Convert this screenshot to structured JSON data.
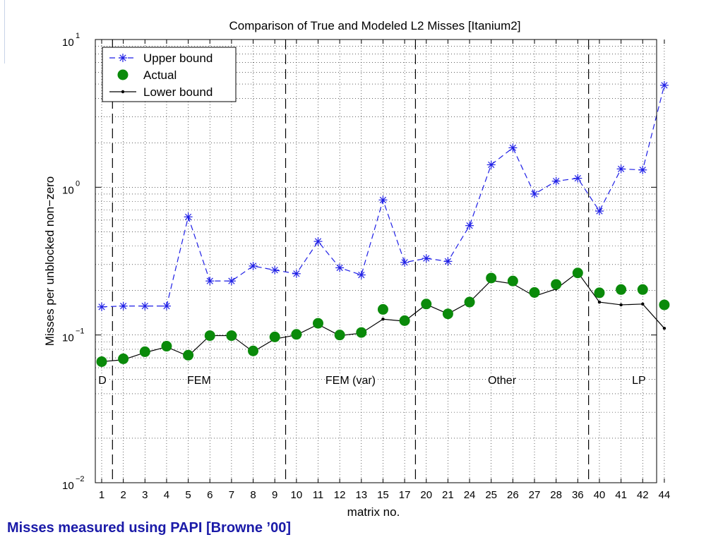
{
  "slide": {
    "caption": "Misses measured using PAPI [Browne ’00]"
  },
  "chart_data": {
    "type": "line",
    "title": "Comparison of True and Modeled L2 Misses [Itanium2]",
    "xlabel": "matrix no.",
    "ylabel": "Misses per unblocked non−zero",
    "y_scale": "log",
    "ylim": [
      0.01,
      10
    ],
    "y_ticks": [
      {
        "base": "10",
        "exp": "−2",
        "value": 0.01
      },
      {
        "base": "10",
        "exp": "−1",
        "value": 0.1
      },
      {
        "base": "10",
        "exp": "0",
        "value": 1
      },
      {
        "base": "10",
        "exp": "1",
        "value": 10
      }
    ],
    "grid": true,
    "legend_position": "top-left",
    "categories": [
      "1",
      "2",
      "3",
      "4",
      "5",
      "6",
      "7",
      "8",
      "9",
      "10",
      "11",
      "12",
      "13",
      "15",
      "17",
      "20",
      "21",
      "24",
      "25",
      "26",
      "27",
      "28",
      "36",
      "40",
      "41",
      "42",
      "44"
    ],
    "series": [
      {
        "name": "Upper bound",
        "color": "#1f1fe6",
        "line_style": "dashed",
        "marker": "asterisk",
        "values": [
          0.155,
          0.157,
          0.157,
          0.157,
          0.63,
          0.232,
          0.232,
          0.293,
          0.275,
          0.26,
          0.43,
          0.285,
          0.255,
          0.82,
          0.31,
          0.33,
          0.315,
          0.55,
          1.42,
          1.85,
          0.9,
          1.1,
          1.15,
          0.69,
          1.33,
          1.31,
          4.9
        ]
      },
      {
        "name": "Actual",
        "color": "#0a8a0a",
        "line_style": "none",
        "marker": "circle",
        "values": [
          0.066,
          0.069,
          0.077,
          0.084,
          0.073,
          0.099,
          0.099,
          0.078,
          0.097,
          0.101,
          0.12,
          0.1,
          0.104,
          0.149,
          0.125,
          0.162,
          0.139,
          0.167,
          0.243,
          0.232,
          0.194,
          0.22,
          0.263,
          0.193,
          0.203,
          0.203,
          0.16
        ]
      },
      {
        "name": "Lower bound",
        "color": "#000000",
        "line_style": "solid",
        "marker": "dot",
        "values": [
          0.066,
          0.068,
          0.076,
          0.083,
          0.072,
          0.099,
          0.099,
          0.077,
          0.094,
          0.1,
          0.118,
          0.099,
          0.103,
          0.128,
          0.124,
          0.161,
          0.139,
          0.167,
          0.234,
          0.222,
          0.183,
          0.205,
          0.265,
          0.167,
          0.16,
          0.162,
          0.111
        ]
      }
    ],
    "region_dividers_after_index": [
      0,
      8,
      14,
      22
    ],
    "regions": [
      {
        "label": "D",
        "from": 0,
        "to": 0
      },
      {
        "label": "FEM",
        "from": 1,
        "to": 8
      },
      {
        "label": "FEM (var)",
        "from": 9,
        "to": 14
      },
      {
        "label": "Other",
        "from": 15,
        "to": 22
      },
      {
        "label": "LP",
        "from": 23,
        "to": 26
      }
    ]
  }
}
